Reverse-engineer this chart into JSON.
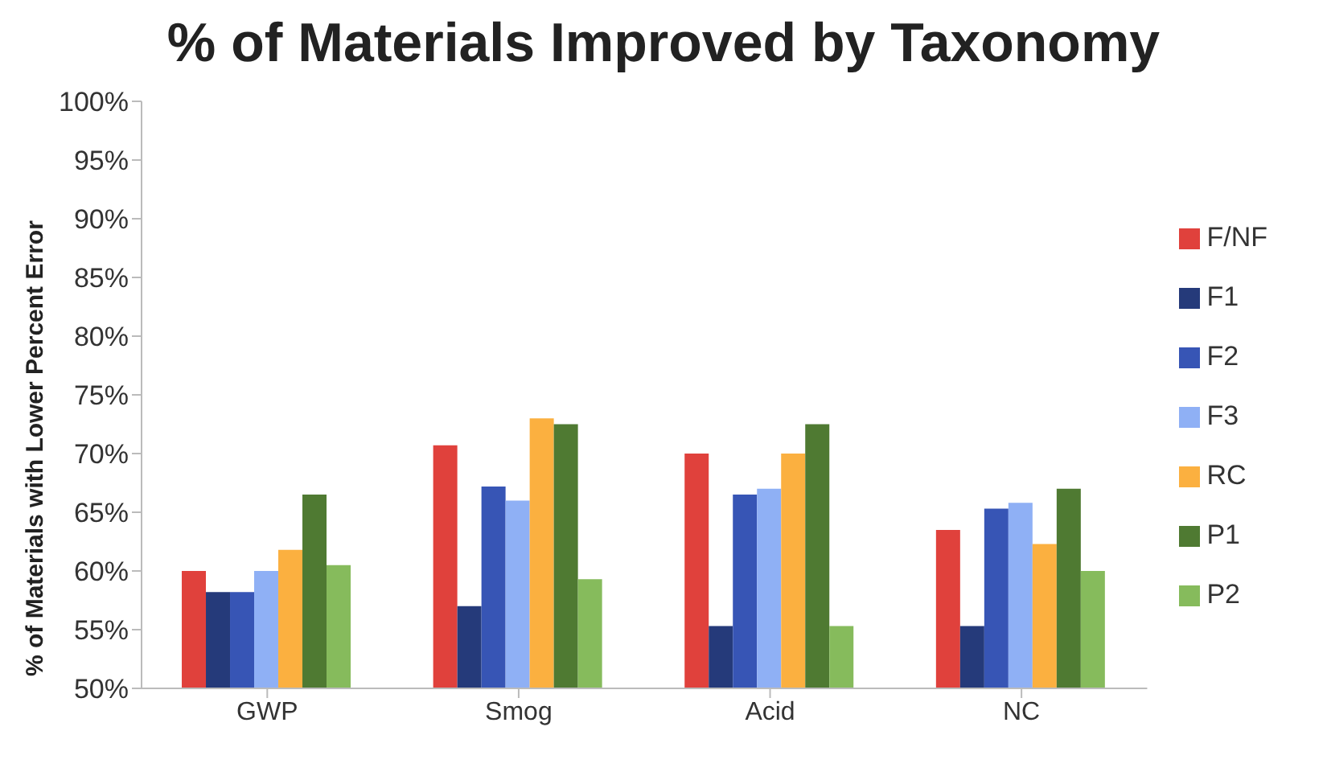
{
  "chart_data": {
    "type": "bar",
    "title": "% of Materials Improved by Taxonomy",
    "ylabel": "% of Materials with Lower Percent Error",
    "categories": [
      "GWP",
      "Smog",
      "Acid",
      "NC"
    ],
    "series": [
      {
        "name": "F/NF",
        "color": "#e0413c",
        "values": [
          60,
          70.7,
          70,
          63.5
        ]
      },
      {
        "name": "F1",
        "color": "#253a7a",
        "values": [
          58.2,
          57,
          55.3,
          55.3
        ]
      },
      {
        "name": "F2",
        "color": "#3755b5",
        "values": [
          58.2,
          67.2,
          66.5,
          65.3
        ]
      },
      {
        "name": "F3",
        "color": "#8fb0f5",
        "values": [
          60,
          66,
          67,
          65.8
        ]
      },
      {
        "name": "RC",
        "color": "#fbb040",
        "values": [
          61.8,
          73,
          70,
          62.3
        ]
      },
      {
        "name": "P1",
        "color": "#4f7a32",
        "values": [
          66.5,
          72.5,
          72.5,
          67
        ]
      },
      {
        "name": "P2",
        "color": "#86bb5c",
        "values": [
          60.5,
          59.3,
          55.3,
          60
        ]
      }
    ],
    "ylim": [
      50,
      100
    ],
    "yticks": [
      {
        "value": 50,
        "label": "50%"
      },
      {
        "value": 55,
        "label": "55%"
      },
      {
        "value": 60,
        "label": "60%"
      },
      {
        "value": 65,
        "label": "65%"
      },
      {
        "value": 70,
        "label": "70%"
      },
      {
        "value": 75,
        "label": "75%"
      },
      {
        "value": 80,
        "label": "80%"
      },
      {
        "value": 85,
        "label": "85%"
      },
      {
        "value": 90,
        "label": "90%"
      },
      {
        "value": 95,
        "label": "95%"
      },
      {
        "value": 100,
        "label": "100%"
      }
    ],
    "grid": false,
    "legend": "right"
  }
}
